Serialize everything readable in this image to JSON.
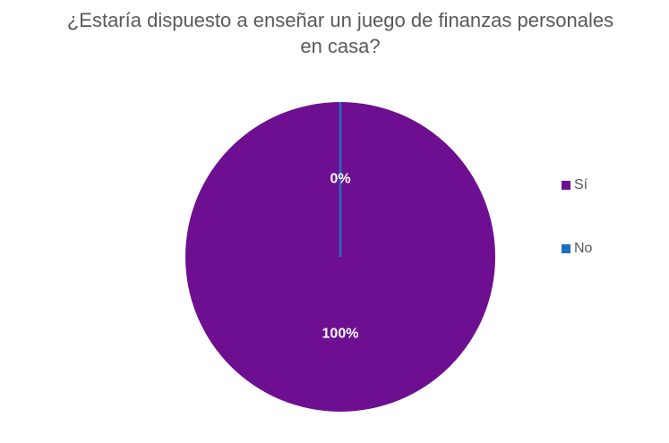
{
  "chart_data": {
    "type": "pie",
    "title": "¿Estaría dispuesto a enseñar un juego de finanzas personales en casa?",
    "categories": [
      "Sí",
      "No"
    ],
    "values": [
      100,
      0
    ],
    "value_labels": [
      "100%",
      "0%"
    ],
    "colors": [
      "#6e0f91",
      "#1f6fc0"
    ],
    "legend": "right"
  }
}
